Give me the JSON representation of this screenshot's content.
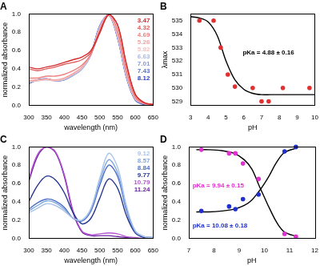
{
  "chart_data": [
    {
      "title": "A",
      "type": "line",
      "xlabel": "wavelength (nm)",
      "ylabel": "normalized absorbance",
      "x": [
        300,
        325,
        350,
        375,
        400,
        425,
        450,
        475,
        500,
        525,
        550,
        575,
        600,
        625,
        650
      ],
      "series": [
        {
          "name": "3.47",
          "color": "#d42a2a",
          "values": [
            0.42,
            0.4,
            0.42,
            0.44,
            0.47,
            0.5,
            0.53,
            0.6,
            0.8,
            0.99,
            0.88,
            0.45,
            0.12,
            0.03,
            0.01
          ]
        },
        {
          "name": "4.32",
          "color": "#e05a5a",
          "values": [
            0.4,
            0.38,
            0.4,
            0.42,
            0.45,
            0.47,
            0.5,
            0.58,
            0.79,
            0.99,
            0.88,
            0.45,
            0.12,
            0.03,
            0.01
          ]
        },
        {
          "name": "4.69",
          "color": "#ec8080",
          "values": [
            0.3,
            0.3,
            0.32,
            0.32,
            0.34,
            0.38,
            0.44,
            0.56,
            0.82,
            1.0,
            0.82,
            0.38,
            0.09,
            0.02,
            0.01
          ]
        },
        {
          "name": "5.26",
          "color": "#f2a3a3",
          "values": [
            0.27,
            0.28,
            0.29,
            0.28,
            0.3,
            0.35,
            0.42,
            0.56,
            0.84,
            0.99,
            0.78,
            0.35,
            0.08,
            0.02,
            0.01
          ]
        },
        {
          "name": "5.82",
          "color": "#f6c2c2",
          "values": [
            0.26,
            0.27,
            0.28,
            0.27,
            0.29,
            0.34,
            0.41,
            0.56,
            0.85,
            0.99,
            0.76,
            0.33,
            0.07,
            0.02,
            0.01
          ]
        },
        {
          "name": "6.63",
          "color": "#a9b8e6",
          "values": [
            0.25,
            0.27,
            0.28,
            0.27,
            0.28,
            0.33,
            0.4,
            0.55,
            0.86,
            0.99,
            0.75,
            0.32,
            0.07,
            0.02,
            0.01
          ]
        },
        {
          "name": "7.01",
          "color": "#8396dc",
          "values": [
            0.25,
            0.28,
            0.29,
            0.27,
            0.28,
            0.33,
            0.4,
            0.55,
            0.86,
            0.99,
            0.75,
            0.32,
            0.07,
            0.02,
            0.01
          ]
        },
        {
          "name": "7.43",
          "color": "#5a70cf",
          "values": [
            0.24,
            0.28,
            0.29,
            0.27,
            0.28,
            0.33,
            0.4,
            0.56,
            0.87,
            0.99,
            0.74,
            0.31,
            0.06,
            0.01,
            0.0
          ]
        },
        {
          "name": "8.12",
          "color": "#2a3fc0",
          "values": [
            0.24,
            0.28,
            0.29,
            0.27,
            0.28,
            0.33,
            0.4,
            0.56,
            0.87,
            0.99,
            0.74,
            0.31,
            0.06,
            0.01,
            0.0
          ]
        }
      ],
      "xlim": [
        300,
        650
      ],
      "xticks": [
        300,
        350,
        400,
        450,
        500,
        550,
        600,
        650
      ],
      "ylim": [
        0,
        1
      ],
      "yticks": [
        {
          "value": 0,
          "label": "0.0"
        },
        0.2,
        0.4,
        0.6,
        0.8,
        {
          "value": 1,
          "label": "1.0"
        }
      ],
      "grid": false,
      "legend": "top right"
    },
    {
      "title": "B",
      "type": "scatter",
      "xlabel": "pH",
      "ylabel": "λmax",
      "series": [
        {
          "type": "scatter",
          "marker": "circle",
          "color": "#e03030",
          "x": [
            3.5,
            4.3,
            4.7,
            5.1,
            5.5,
            6.5,
            7.0,
            7.4,
            8.2,
            9.7
          ],
          "values": [
            535,
            535,
            533,
            531,
            530.1,
            530,
            529,
            529,
            530,
            530
          ]
        },
        {
          "type": "line",
          "color": "#000000",
          "x": [
            3,
            3.5,
            4,
            4.5,
            5,
            5.5,
            6,
            6.5,
            7,
            7.5,
            8,
            9,
            10
          ],
          "values": [
            535.3,
            535.2,
            534.9,
            533.9,
            532.0,
            530.6,
            529.9,
            529.6,
            529.5,
            529.5,
            529.5,
            529.5,
            529.5
          ]
        }
      ],
      "xlim": [
        3,
        10
      ],
      "xticks": [
        3,
        4,
        5,
        6,
        7,
        8,
        9,
        10
      ],
      "ylim": [
        528.7,
        535.5
      ],
      "yticks": [
        529,
        530,
        531,
        532,
        533,
        534,
        535
      ],
      "grid": false,
      "annotations": [
        {
          "text": "pKa = 4.88 ± 0.16",
          "color": "#000000"
        }
      ]
    },
    {
      "title": "C",
      "type": "line",
      "xlabel": "wavelength (nm)",
      "ylabel": "normalized absorbance",
      "x": [
        300,
        325,
        350,
        375,
        400,
        425,
        450,
        475,
        500,
        525,
        550,
        575,
        600,
        625,
        650
      ],
      "series": [
        {
          "name": "9.12",
          "color": "#a9c4e8",
          "values": [
            0.28,
            0.33,
            0.38,
            0.36,
            0.3,
            0.22,
            0.2,
            0.33,
            0.66,
            0.93,
            0.78,
            0.36,
            0.08,
            0.02,
            0.01
          ]
        },
        {
          "name": "8.57",
          "color": "#7fa6dc",
          "values": [
            0.3,
            0.36,
            0.41,
            0.39,
            0.32,
            0.22,
            0.2,
            0.32,
            0.62,
            0.86,
            0.72,
            0.33,
            0.08,
            0.02,
            0.01
          ]
        },
        {
          "name": "8.84",
          "color": "#4a6fc8",
          "values": [
            0.32,
            0.39,
            0.43,
            0.41,
            0.34,
            0.22,
            0.19,
            0.3,
            0.58,
            0.8,
            0.68,
            0.31,
            0.07,
            0.02,
            0.01
          ]
        },
        {
          "name": "9.77",
          "color": "#25358f",
          "values": [
            0.4,
            0.58,
            0.68,
            0.64,
            0.5,
            0.28,
            0.16,
            0.22,
            0.44,
            0.65,
            0.55,
            0.25,
            0.06,
            0.01,
            0.0
          ]
        },
        {
          "name": "10.79",
          "color": "#b455d0",
          "values": [
            0.65,
            0.92,
            1.0,
            0.95,
            0.7,
            0.3,
            0.08,
            0.04,
            0.05,
            0.06,
            0.05,
            0.02,
            0.01,
            0.0,
            0.0
          ]
        },
        {
          "name": "11.24",
          "color": "#6a1fa0",
          "values": [
            0.62,
            0.9,
            1.0,
            0.94,
            0.68,
            0.28,
            0.07,
            0.03,
            0.03,
            0.03,
            0.02,
            0.01,
            0.0,
            0.0,
            0.0
          ]
        }
      ],
      "xlim": [
        300,
        650
      ],
      "xticks": [
        300,
        350,
        400,
        450,
        500,
        550,
        600,
        650
      ],
      "ylim": [
        0,
        1
      ],
      "yticks": [
        {
          "value": 0,
          "label": "0.0"
        },
        0.2,
        0.4,
        0.6,
        0.8,
        {
          "value": 1,
          "label": "1.0"
        }
      ],
      "grid": false,
      "legend": "top right"
    },
    {
      "title": "D",
      "type": "scatter",
      "xlabel": "pH",
      "ylabel": "normalized absorbance",
      "series": [
        {
          "type": "scatter",
          "marker": "circle",
          "color": "#e030d0",
          "x": [
            7.5,
            8.6,
            8.85,
            9.15,
            9.77,
            10.8,
            11.25
          ],
          "values": [
            0.97,
            0.93,
            0.93,
            0.82,
            0.65,
            0.05,
            0.02
          ]
        },
        {
          "type": "scatter",
          "marker": "circle",
          "color": "#2030d0",
          "x": [
            7.5,
            8.6,
            8.85,
            9.15,
            9.77,
            10.8,
            11.25
          ],
          "values": [
            0.3,
            0.35,
            0.32,
            0.43,
            0.48,
            0.95,
            1.0
          ]
        },
        {
          "type": "line",
          "color": "#000000",
          "x": [
            7.3,
            7.8,
            8.3,
            8.8,
            9.2,
            9.5,
            9.8,
            10.0,
            10.2,
            10.5,
            10.8,
            11.3
          ],
          "values": [
            0.97,
            0.97,
            0.96,
            0.93,
            0.86,
            0.76,
            0.57,
            0.45,
            0.33,
            0.17,
            0.07,
            0.02
          ]
        },
        {
          "type": "line",
          "color": "#000000",
          "x": [
            7.3,
            7.8,
            8.3,
            8.8,
            9.2,
            9.5,
            9.8,
            10.0,
            10.2,
            10.5,
            10.8,
            11.3
          ],
          "values": [
            0.29,
            0.29,
            0.3,
            0.32,
            0.36,
            0.42,
            0.52,
            0.6,
            0.69,
            0.84,
            0.94,
            0.99
          ]
        }
      ],
      "xlim": [
        7,
        12
      ],
      "xticks": [
        7,
        8,
        9,
        10,
        11,
        12
      ],
      "ylim": [
        0,
        1
      ],
      "yticks": [
        {
          "value": 0,
          "label": "0.0"
        },
        0.2,
        0.4,
        0.6,
        0.8,
        {
          "value": 1,
          "label": "1.0"
        }
      ],
      "grid": false,
      "annotations": [
        {
          "text": "pKa = 9.94 ± 0.15",
          "color": "#e030d0"
        },
        {
          "text": "pKa = 10.08 ± 0.18",
          "color": "#2030d0"
        }
      ]
    }
  ]
}
